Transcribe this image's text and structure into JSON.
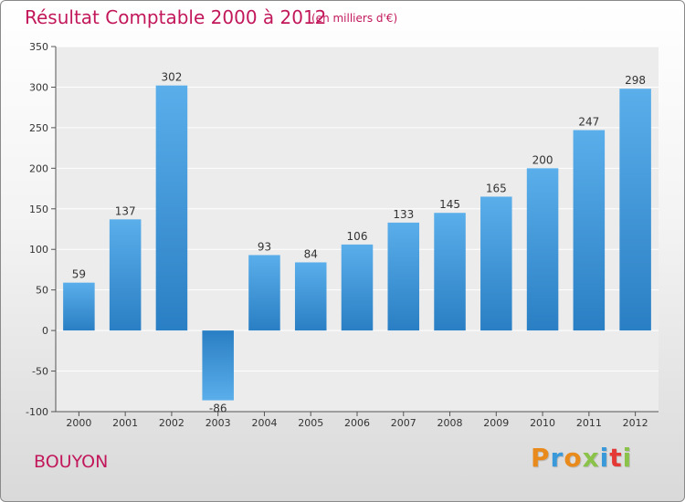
{
  "header": {
    "title": "Résultat Comptable 2000 à 2012",
    "subtitle": "(en milliers d'€)"
  },
  "footer": {
    "commune": "BOUYON",
    "logo": {
      "letters": [
        "P",
        "r",
        "o",
        "x",
        "i",
        "t",
        "i"
      ],
      "colors": [
        "#e98a1c",
        "#3a9ad9",
        "#e98a1c",
        "#8bc34a",
        "#3a9ad9",
        "#e53935",
        "#8bc34a"
      ]
    }
  },
  "colors": {
    "bar_light": "#5aaeea",
    "bar_dark": "#2a7fc4",
    "accent": "#c2185b"
  },
  "chart_data": {
    "type": "bar",
    "categories": [
      "2000",
      "2001",
      "2002",
      "2003",
      "2004",
      "2005",
      "2006",
      "2007",
      "2008",
      "2009",
      "2010",
      "2011",
      "2012"
    ],
    "values": [
      59,
      137,
      302,
      -86,
      93,
      84,
      106,
      133,
      145,
      165,
      200,
      247,
      298
    ],
    "ylim": [
      -100,
      350
    ],
    "yticks": [
      -100,
      -50,
      0,
      50,
      100,
      150,
      200,
      250,
      300,
      350
    ],
    "grid": true,
    "legend": "none"
  }
}
